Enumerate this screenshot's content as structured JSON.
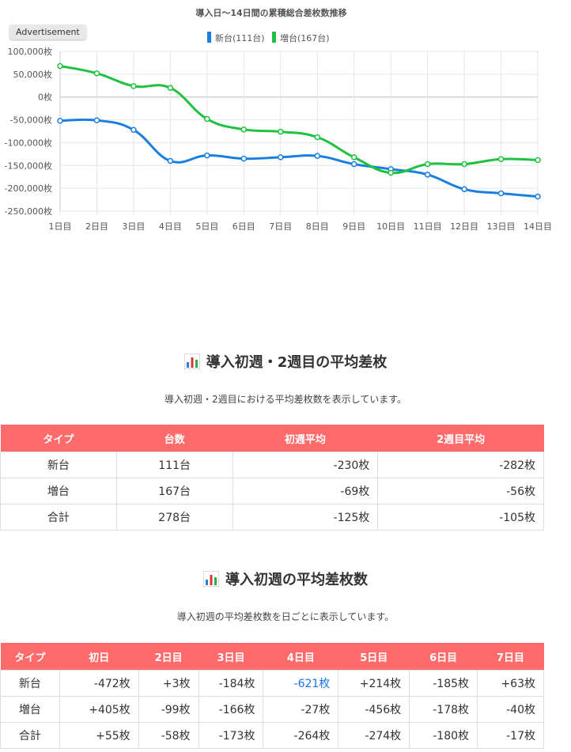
{
  "chart_data": {
    "type": "line",
    "title": "導入日〜14日間の累積総合差枚数推移",
    "categories": [
      "1日目",
      "2日目",
      "3日目",
      "4日目",
      "5日目",
      "6日目",
      "7日目",
      "8日目",
      "9日目",
      "10日目",
      "11日目",
      "12日目",
      "13日目",
      "14日目"
    ],
    "series": [
      {
        "name": "新台(111台)",
        "color": "#1a7fe0",
        "values": [
          -52000,
          -51000,
          -72000,
          -140000,
          -128000,
          -135000,
          -132000,
          -129000,
          -147000,
          -158000,
          -170000,
          -202000,
          -211000,
          -218000
        ]
      },
      {
        "name": "増台(167台)",
        "color": "#1ec240",
        "values": [
          68000,
          52000,
          24000,
          20000,
          -48000,
          -71000,
          -76000,
          -88000,
          -132000,
          -166000,
          -147000,
          -147000,
          -136000,
          -138000
        ]
      }
    ],
    "yticks": [
      "100,000枚",
      "50,000枚",
      "0枚",
      "-50,000枚",
      "-100,000枚",
      "-150,000枚",
      "-200,000枚",
      "-250,000枚"
    ],
    "ylim": [
      -250000,
      100000
    ],
    "grid": true,
    "legend": "top-center"
  },
  "ad_label": "Advertisement",
  "section1": {
    "title": "導入初週・2週目の平均差枚",
    "icon": "bar-chart-icon",
    "desc": "導入初週・2週目における平均差枚数を表示しています。",
    "headers": [
      "タイプ",
      "台数",
      "初週平均",
      "2週目平均"
    ],
    "rows": [
      [
        "新台",
        "111台",
        "-230枚",
        "-282枚"
      ],
      [
        "増台",
        "167台",
        "-69枚",
        "-56枚"
      ],
      [
        "合計",
        "278台",
        "-125枚",
        "-105枚"
      ]
    ]
  },
  "section2": {
    "title": "導入初週の平均差枚数",
    "icon": "bar-chart-icon",
    "desc": "導入初週の平均差枚数を日ごとに表示しています。",
    "headers": [
      "タイプ",
      "初日",
      "2日目",
      "3日目",
      "4日目",
      "5日目",
      "6日目",
      "7日目"
    ],
    "rows": [
      [
        "新台",
        "-472枚",
        "+3枚",
        "-184枚",
        "-621枚",
        "+214枚",
        "-185枚",
        "+63枚"
      ],
      [
        "増台",
        "+405枚",
        "-99枚",
        "-166枚",
        "-27枚",
        "-456枚",
        "-178枚",
        "-40枚"
      ],
      [
        "合計",
        "+55枚",
        "-58枚",
        "-173枚",
        "-264枚",
        "-274枚",
        "-180枚",
        "-17枚"
      ]
    ]
  },
  "colors": {
    "header_bg": "#ff6b6b",
    "link": "#1a73e8"
  }
}
